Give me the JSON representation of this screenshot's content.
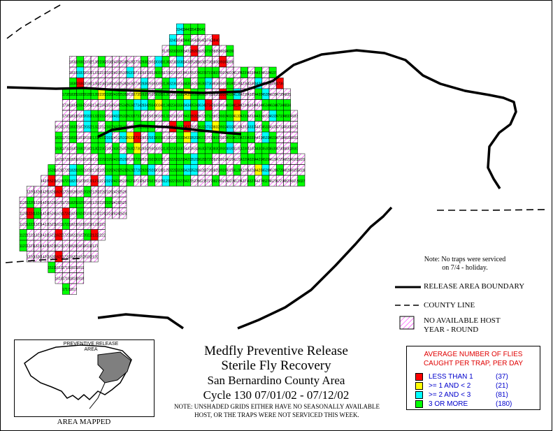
{
  "title": {
    "line1": "Medfly Preventive Release",
    "line2": "Sterile Fly Recovery",
    "line3": "San Bernardino County Area",
    "line4": "Cycle 130    07/01/02 - 07/12/02"
  },
  "note_bottom": {
    "line1": "NOTE: UNSHADED GRIDS EITHER HAVE NO SEASONALLY AVAILABLE",
    "line2": "HOST, OR THE TRAPS WERE NOT SERVICED THIS WEEK."
  },
  "note_top": {
    "line1": "Note: No traps were serviced",
    "line2": "on 7/4 - holiday."
  },
  "map_key": {
    "release_boundary": "RELEASE AREA BOUNDARY",
    "county_line": "COUNTY LINE",
    "no_host_line1": "NO AVAILABLE HOST",
    "no_host_line2": "YEAR - ROUND"
  },
  "inset": {
    "label_line1": "PREVENTIVE RELEASE",
    "label_line2": "AREA",
    "caption": "AREA MAPPED"
  },
  "legend": {
    "title_line1": "AVERAGE NUMBER OF FLIES",
    "title_line2": "CAUGHT PER TRAP, PER DAY",
    "items": [
      {
        "label": "LESS THAN 1",
        "count": "(37)",
        "color": "#ff0000"
      },
      {
        "label": ">= 1 AND < 2",
        "count": "(21)",
        "color": "#ffff00"
      },
      {
        "label": ">= 2 AND < 3",
        "count": "(81)",
        "color": "#00ffff"
      },
      {
        "label": "3 OR MORE",
        "count": "(180)",
        "color": "#00ff00"
      }
    ]
  },
  "colors": {
    "red": "#ff0000",
    "yellow": "#ffff00",
    "cyan": "#00ffff",
    "green": "#00ff00",
    "hatch": "#ff00ff",
    "gray": "#7f7f7f"
  },
  "grid": {
    "col_min": 11,
    "row_min": 17,
    "row_max": 41,
    "rows": [
      {
        "row": 41,
        "span": [
          33,
          36
        ]
      },
      {
        "row": 40,
        "span": [
          32,
          38
        ]
      },
      {
        "row": 39,
        "span": [
          31,
          40
        ]
      },
      {
        "row": 38,
        "span": [
          18,
          40
        ]
      },
      {
        "row": 37,
        "span": [
          18,
          46
        ]
      },
      {
        "row": 36,
        "span": [
          18,
          47
        ]
      },
      {
        "row": 35,
        "span": [
          17,
          48
        ]
      },
      {
        "row": 34,
        "span": [
          17,
          48
        ]
      },
      {
        "row": 33,
        "span": [
          17,
          49
        ]
      },
      {
        "row": 32,
        "span": [
          16,
          49
        ]
      },
      {
        "row": 31,
        "span": [
          16,
          49
        ]
      },
      {
        "row": 30,
        "span": [
          16,
          49
        ]
      },
      {
        "row": 29,
        "span": [
          16,
          50
        ]
      },
      {
        "row": 28,
        "span": [
          15,
          50
        ]
      },
      {
        "row": 27,
        "span": [
          14,
          50
        ]
      },
      {
        "row": 26,
        "span": [
          12,
          25
        ]
      },
      {
        "row": 25,
        "span": [
          11,
          25
        ]
      },
      {
        "row": 24,
        "span": [
          11,
          25
        ]
      },
      {
        "row": 23,
        "span": [
          11,
          22
        ]
      },
      {
        "row": 22,
        "span": [
          11,
          22
        ]
      },
      {
        "row": 21,
        "span": [
          11,
          21
        ]
      },
      {
        "row": 20,
        "span": [
          12,
          21
        ]
      },
      {
        "row": 19,
        "span": [
          15,
          19
        ]
      },
      {
        "row": 18,
        "span": [
          16,
          19
        ]
      },
      {
        "row": 17,
        "span": [
          17,
          18
        ]
      }
    ]
  }
}
